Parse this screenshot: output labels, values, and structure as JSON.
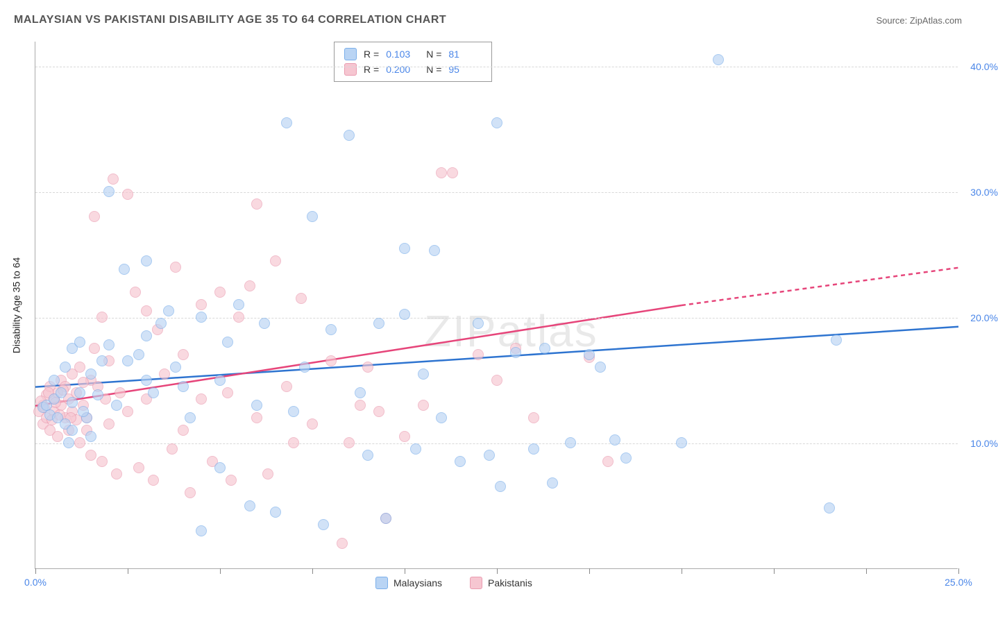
{
  "title": "MALAYSIAN VS PAKISTANI DISABILITY AGE 35 TO 64 CORRELATION CHART",
  "source": "Source: ZipAtlas.com",
  "ylabel": "Disability Age 35 to 64",
  "watermark_a": "ZIP",
  "watermark_b": "atlas",
  "chart": {
    "type": "scatter",
    "xlim": [
      0,
      25
    ],
    "ylim": [
      0,
      42
    ],
    "x_ticks": [
      0,
      2.5,
      5,
      7.5,
      10,
      12.5,
      15,
      17.5,
      20,
      22.5,
      25
    ],
    "x_tick_labels": {
      "0": "0.0%",
      "25": "25.0%"
    },
    "y_gridlines": [
      10,
      20,
      30,
      40
    ],
    "y_tick_labels": {
      "10": "10.0%",
      "20": "20.0%",
      "30": "30.0%",
      "40": "40.0%"
    },
    "background_color": "#ffffff",
    "grid_color": "#d8d8d8",
    "axis_color": "#aaaaaa",
    "marker_radius": 8,
    "marker_opacity": 0.65,
    "series": {
      "malaysians": {
        "label": "Malaysians",
        "fill": "#b9d4f4",
        "stroke": "#7bafea",
        "line_color": "#2e74d0",
        "r": "0.103",
        "n": "81",
        "trend": {
          "x1": 0,
          "y1": 14.5,
          "x2": 25,
          "y2": 19.3,
          "dash_after_x": 25
        },
        "points": [
          [
            0.2,
            12.8
          ],
          [
            0.3,
            13.0
          ],
          [
            0.4,
            12.2
          ],
          [
            0.5,
            13.5
          ],
          [
            0.5,
            15.0
          ],
          [
            0.6,
            12.0
          ],
          [
            0.7,
            14.0
          ],
          [
            0.8,
            11.5
          ],
          [
            0.8,
            16.0
          ],
          [
            1.0,
            13.2
          ],
          [
            1.0,
            17.5
          ],
          [
            1.2,
            14.0
          ],
          [
            1.2,
            18.0
          ],
          [
            1.4,
            12.0
          ],
          [
            1.5,
            15.5
          ],
          [
            1.5,
            10.5
          ],
          [
            1.8,
            16.5
          ],
          [
            2.0,
            17.8
          ],
          [
            2.0,
            30.0
          ],
          [
            2.2,
            13.0
          ],
          [
            2.4,
            23.8
          ],
          [
            2.8,
            17.0
          ],
          [
            3.0,
            15.0
          ],
          [
            3.0,
            24.5
          ],
          [
            3.2,
            14.0
          ],
          [
            3.4,
            19.5
          ],
          [
            3.6,
            20.5
          ],
          [
            3.8,
            16.0
          ],
          [
            4.0,
            14.5
          ],
          [
            4.2,
            12.0
          ],
          [
            4.5,
            20.0
          ],
          [
            4.5,
            3.0
          ],
          [
            5.0,
            15.0
          ],
          [
            5.0,
            8.0
          ],
          [
            5.2,
            18.0
          ],
          [
            5.5,
            21.0
          ],
          [
            5.8,
            5.0
          ],
          [
            6.0,
            13.0
          ],
          [
            6.2,
            19.5
          ],
          [
            6.5,
            4.5
          ],
          [
            6.8,
            35.5
          ],
          [
            7.0,
            12.5
          ],
          [
            7.3,
            16.0
          ],
          [
            7.5,
            28.0
          ],
          [
            7.8,
            3.5
          ],
          [
            8.0,
            19.0
          ],
          [
            8.5,
            34.5
          ],
          [
            8.8,
            14.0
          ],
          [
            9.0,
            9.0
          ],
          [
            9.3,
            19.5
          ],
          [
            9.5,
            4.0
          ],
          [
            10.0,
            20.2
          ],
          [
            10.0,
            25.5
          ],
          [
            10.3,
            9.5
          ],
          [
            10.5,
            15.5
          ],
          [
            10.8,
            25.3
          ],
          [
            11.0,
            12.0
          ],
          [
            11.5,
            8.5
          ],
          [
            12.0,
            19.5
          ],
          [
            12.3,
            9.0
          ],
          [
            12.5,
            35.5
          ],
          [
            12.6,
            6.5
          ],
          [
            13.0,
            17.2
          ],
          [
            13.5,
            9.5
          ],
          [
            13.8,
            17.5
          ],
          [
            14.0,
            6.8
          ],
          [
            14.5,
            10.0
          ],
          [
            15.0,
            17.0
          ],
          [
            15.3,
            16.0
          ],
          [
            15.7,
            10.2
          ],
          [
            16.0,
            8.8
          ],
          [
            17.5,
            10.0
          ],
          [
            18.5,
            40.5
          ],
          [
            21.5,
            4.8
          ],
          [
            21.7,
            18.2
          ],
          [
            1.0,
            11.0
          ],
          [
            1.3,
            12.5
          ],
          [
            1.7,
            13.8
          ],
          [
            2.5,
            16.5
          ],
          [
            3.0,
            18.5
          ],
          [
            0.9,
            10.0
          ]
        ]
      },
      "pakistanis": {
        "label": "Pakistanis",
        "fill": "#f6c6d1",
        "stroke": "#ea9bb0",
        "line_color": "#e6457a",
        "r": "0.200",
        "n": "95",
        "trend": {
          "x1": 0,
          "y1": 13.0,
          "x2": 17.5,
          "y2": 21.0,
          "dash_after_x": 17.5,
          "dash_x2": 25,
          "dash_y2": 24.0
        },
        "points": [
          [
            0.1,
            12.5
          ],
          [
            0.2,
            13.0
          ],
          [
            0.2,
            11.5
          ],
          [
            0.3,
            12.0
          ],
          [
            0.3,
            13.8
          ],
          [
            0.4,
            11.0
          ],
          [
            0.4,
            14.5
          ],
          [
            0.5,
            12.5
          ],
          [
            0.5,
            13.5
          ],
          [
            0.6,
            14.0
          ],
          [
            0.6,
            10.5
          ],
          [
            0.7,
            13.0
          ],
          [
            0.7,
            15.0
          ],
          [
            0.8,
            12.0
          ],
          [
            0.8,
            14.5
          ],
          [
            0.9,
            11.0
          ],
          [
            0.9,
            13.5
          ],
          [
            1.0,
            12.5
          ],
          [
            1.0,
            15.5
          ],
          [
            1.1,
            14.0
          ],
          [
            1.2,
            10.0
          ],
          [
            1.2,
            16.0
          ],
          [
            1.3,
            13.0
          ],
          [
            1.4,
            12.0
          ],
          [
            1.4,
            11.0
          ],
          [
            1.5,
            15.0
          ],
          [
            1.5,
            9.0
          ],
          [
            1.6,
            17.5
          ],
          [
            1.6,
            28.0
          ],
          [
            1.7,
            14.5
          ],
          [
            1.8,
            8.5
          ],
          [
            1.8,
            20.0
          ],
          [
            1.9,
            13.5
          ],
          [
            2.0,
            11.5
          ],
          [
            2.0,
            16.5
          ],
          [
            2.1,
            31.0
          ],
          [
            2.2,
            7.5
          ],
          [
            2.3,
            14.0
          ],
          [
            2.5,
            29.8
          ],
          [
            2.5,
            12.5
          ],
          [
            2.7,
            22.0
          ],
          [
            2.8,
            8.0
          ],
          [
            3.0,
            20.5
          ],
          [
            3.0,
            13.5
          ],
          [
            3.2,
            7.0
          ],
          [
            3.3,
            19.0
          ],
          [
            3.5,
            15.5
          ],
          [
            3.7,
            9.5
          ],
          [
            3.8,
            24.0
          ],
          [
            4.0,
            11.0
          ],
          [
            4.0,
            17.0
          ],
          [
            4.2,
            6.0
          ],
          [
            4.5,
            13.5
          ],
          [
            4.5,
            21.0
          ],
          [
            4.8,
            8.5
          ],
          [
            5.0,
            22.0
          ],
          [
            5.2,
            14.0
          ],
          [
            5.3,
            7.0
          ],
          [
            5.5,
            20.0
          ],
          [
            5.8,
            22.5
          ],
          [
            6.0,
            29.0
          ],
          [
            6.0,
            12.0
          ],
          [
            6.3,
            7.5
          ],
          [
            6.5,
            24.5
          ],
          [
            6.8,
            14.5
          ],
          [
            7.0,
            10.0
          ],
          [
            7.2,
            21.5
          ],
          [
            7.5,
            11.5
          ],
          [
            8.0,
            16.5
          ],
          [
            8.3,
            2.0
          ],
          [
            8.5,
            10.0
          ],
          [
            8.8,
            13.0
          ],
          [
            9.0,
            16.0
          ],
          [
            9.3,
            12.5
          ],
          [
            9.5,
            4.0
          ],
          [
            10.0,
            10.5
          ],
          [
            10.5,
            13.0
          ],
          [
            11.0,
            31.5
          ],
          [
            11.3,
            31.5
          ],
          [
            12.0,
            17.0
          ],
          [
            12.5,
            15.0
          ],
          [
            13.0,
            17.5
          ],
          [
            13.5,
            12.0
          ],
          [
            15.0,
            16.8
          ],
          [
            15.5,
            8.5
          ],
          [
            1.1,
            11.8
          ],
          [
            1.3,
            14.8
          ],
          [
            0.25,
            12.8
          ],
          [
            0.35,
            14.0
          ],
          [
            0.45,
            11.8
          ],
          [
            0.55,
            13.2
          ],
          [
            0.65,
            12.2
          ],
          [
            0.75,
            14.2
          ],
          [
            0.15,
            13.3
          ],
          [
            0.95,
            12.0
          ]
        ]
      }
    }
  }
}
